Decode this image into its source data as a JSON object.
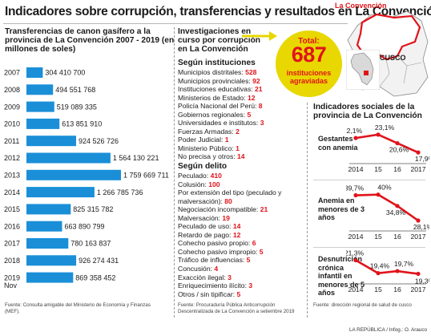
{
  "title": "Indicadores sobre corrupción, transferencias y resultados en La Convención",
  "canon": {
    "title": "Transferencias de canon gasífero a la provincia de La Convención 2007 - 2019 (en millones de soles)",
    "source": "Fuente: Consulta amigable del Ministerio de Economía y Finanzas (MEF).",
    "bar_color": "#1a8fd8"
  },
  "investigaciones": {
    "title": "Investigaciones en curso por corrupción en La Convención",
    "total_label": "Total:",
    "total_value": "687",
    "total_text": "instituciones agraviadas",
    "total_color": "#e8d700",
    "instituciones_header": "Según instituciones",
    "instituciones": [
      {
        "label": "Municipios distritales:",
        "value": "528"
      },
      {
        "label": "Municipios provinciales:",
        "value": "92"
      },
      {
        "label": "Instituciones educativas:",
        "value": "21"
      },
      {
        "label": "Ministerios de Estado:",
        "value": "12"
      },
      {
        "label": "Policía Nacional del Perú:",
        "value": "8"
      },
      {
        "label": "Gobiernos regionales:",
        "value": "5"
      },
      {
        "label": "Universidades e institutos:",
        "value": "3"
      },
      {
        "label": "Fuerzas Armadas:",
        "value": "2"
      },
      {
        "label": "Poder Judicial:",
        "value": "1"
      },
      {
        "label": "Ministerio Público:",
        "value": "1"
      },
      {
        "label": "No precisa y otros:",
        "value": "14"
      }
    ],
    "delito_header": "Según delito",
    "delitos": [
      {
        "label": "Peculado:",
        "value": "410"
      },
      {
        "label": "Colusión:",
        "value": "100"
      },
      {
        "label": "Por extensión del tipo (peculado y malversación):",
        "value": "80"
      },
      {
        "label": "Negociación incompatible:",
        "value": "21"
      },
      {
        "label": "Malversación:",
        "value": "19"
      },
      {
        "label": "Peculado de uso:",
        "value": "14"
      },
      {
        "label": "Retardo de pago:",
        "value": "12"
      },
      {
        "label": "Cohecho pasivo propio:",
        "value": "6"
      },
      {
        "label": "Cohecho pasivo impropio:",
        "value": "5"
      },
      {
        "label": "Tráfico de influencias:",
        "value": "5"
      },
      {
        "label": "Concusión:",
        "value": "4"
      },
      {
        "label": "Exacción ilegal:",
        "value": "3"
      },
      {
        "label": "Enriquecimiento ilícito:",
        "value": "3"
      },
      {
        "label": "Otros / sin tipificar:",
        "value": "5"
      }
    ],
    "source": "Fuente: Procuraduría Pública Anticorrupción Descentralizada de La Convención a setiembre 2019",
    "number_color": "#e0141b"
  },
  "indicadores": {
    "title": "Indicadores sociales de la provincia de La Convención",
    "source": "Fuente: dirección regional de salud de cusco",
    "line_color": "#e0141b"
  },
  "map": {
    "region_label": "La Convención",
    "cusco_label": "CUSCO",
    "highlight_color": "#e0141b"
  },
  "credit": "LA REPÚBLICA / Infog.: O. Arauco",
  "chart_data": [
    {
      "type": "bar",
      "orientation": "horizontal",
      "title": "Transferencias de canon gasífero a la provincia de La Convención 2007 - 2019 (en millones de soles)",
      "categories": [
        "2007",
        "2008",
        "2009",
        "2010",
        "2011",
        "2012",
        "2013",
        "2014",
        "2015",
        "2016",
        "2017",
        "2018",
        "2019"
      ],
      "category_note": "Nov",
      "values": [
        304410700,
        494551768,
        519089335,
        613851910,
        924526726,
        1564130221,
        1759669711,
        1266785736,
        825315782,
        663890799,
        780163837,
        926274431,
        869358452
      ],
      "value_labels": [
        "304 410 700",
        "494 551 768",
        "519 089 335",
        "613 851 910",
        "924 526 726",
        "1 564 130 221",
        "1 759 669 711",
        "1 266 785 736",
        "825 315 782",
        "663 890 799",
        "780 163 837",
        "926 274 431",
        "869 358 452"
      ],
      "grid": false
    },
    {
      "type": "line",
      "title": "Gestantes con anemia",
      "x": [
        "2014",
        "15",
        "16",
        "2017"
      ],
      "values": [
        22.1,
        23.1,
        20.6,
        17.9
      ],
      "value_labels": [
        "22,1%",
        "23,1%",
        "20,6%",
        "17,9%"
      ]
    },
    {
      "type": "line",
      "title": "Anemia en menores de 3 años",
      "x": [
        "2014",
        "15",
        "16",
        "2017"
      ],
      "values": [
        39.7,
        40,
        34.8,
        28.1
      ],
      "value_labels": [
        "39,7%",
        "40%",
        "34,8%",
        "28,1%"
      ]
    },
    {
      "type": "line",
      "title": "Desnutrición crónica infantil en menores de 5 años",
      "x": [
        "2014",
        "15",
        "16",
        "2017"
      ],
      "values": [
        21.3,
        19.4,
        19.7,
        19.3
      ],
      "value_labels": [
        "21,3%",
        "19,4%",
        "19,7%",
        "19,3%"
      ]
    }
  ]
}
